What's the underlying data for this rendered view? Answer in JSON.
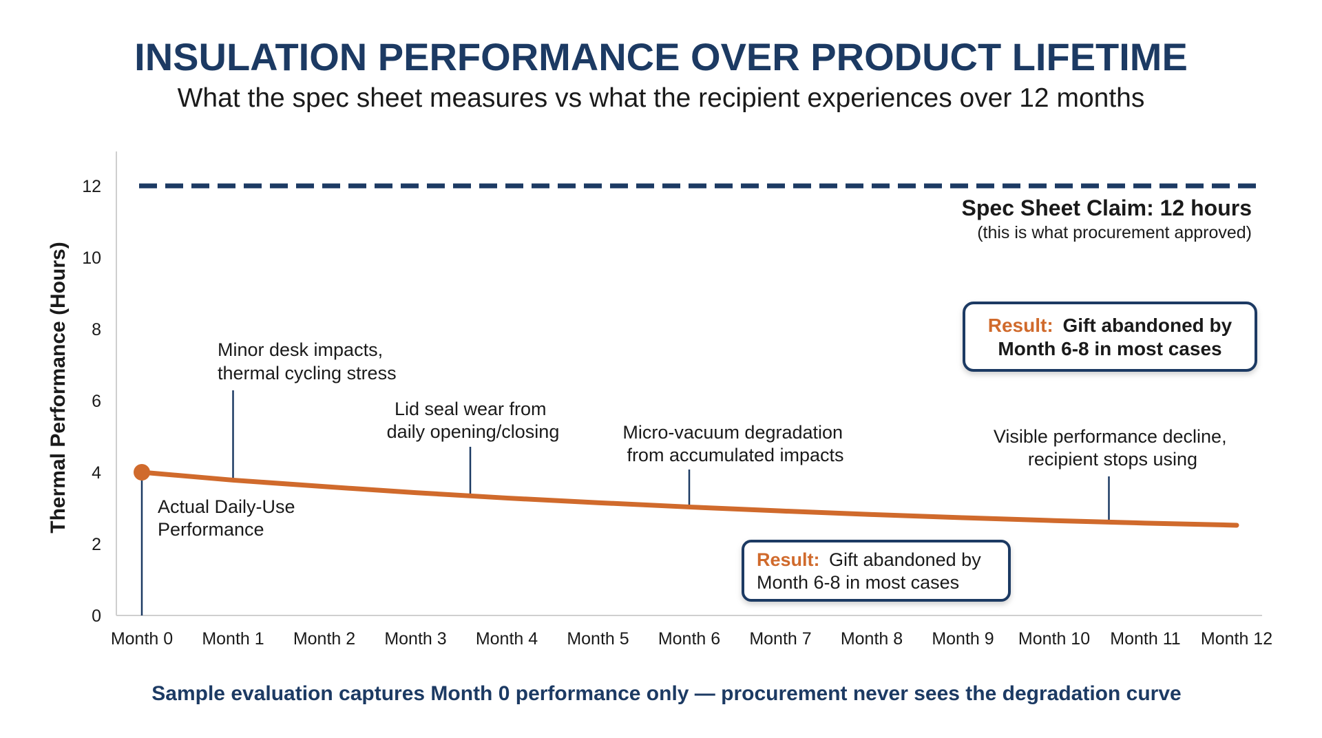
{
  "chart_data": {
    "type": "line",
    "title": "INSULATION PERFORMANCE OVER PRODUCT LIFETIME",
    "subtitle": "What the spec sheet measures vs what the recipient experiences over 12 months",
    "xlabel": "",
    "ylabel": "Thermal Performance (Hours)",
    "categories": [
      "Month 0",
      "Month 1",
      "Month 2",
      "Month 3",
      "Month 4",
      "Month 5",
      "Month 6",
      "Month 7",
      "Month 8",
      "Month 9",
      "Month 10",
      "Month 11",
      "Month 12"
    ],
    "yticks": [
      0,
      2,
      4,
      6,
      8,
      10,
      12
    ],
    "ylim": [
      0,
      13
    ],
    "grid": false,
    "series": [
      {
        "name": "Actual Daily-Use Performance",
        "values": [
          4.0,
          3.78,
          3.6,
          3.43,
          3.28,
          3.15,
          3.03,
          2.92,
          2.82,
          2.73,
          2.65,
          2.58,
          2.52
        ],
        "color": "#d06a2c"
      }
    ],
    "reference_line": {
      "value": 12,
      "style": "dashed",
      "color": "#1c3a63",
      "label": "Spec Sheet Claim: 12 hours",
      "sublabel": "(this is what procurement approved)"
    },
    "annotations": [
      {
        "lines": [
          "Minor desk impacts,",
          "thermal cycling stress"
        ],
        "x": 1
      },
      {
        "lines": [
          "Lid seal wear from",
          "daily opening/closing"
        ],
        "x": 3.6
      },
      {
        "lines": [
          "Micro-vacuum degradation",
          "from accumulated impacts"
        ],
        "x": 6
      },
      {
        "lines": [
          "Visible performance decline,",
          "recipient stops using"
        ],
        "x": 10.6
      },
      {
        "lines": [
          "Actual Daily-Use",
          "Performance"
        ],
        "x": 0
      }
    ],
    "callouts": [
      {
        "prefix": "Result:",
        "line1": "Gift abandoned by",
        "line2": "Month 6-8 in most cases",
        "bold": true
      },
      {
        "prefix": "Result:",
        "line1": "Gift abandoned by",
        "line2": "Month 6-8 in most cases",
        "bold": false
      }
    ],
    "footer": "Sample evaluation captures Month 0 performance only — procurement never sees the degradation curve"
  },
  "colors": {
    "navy": "#1c3a63",
    "orange": "#d06a2c"
  }
}
